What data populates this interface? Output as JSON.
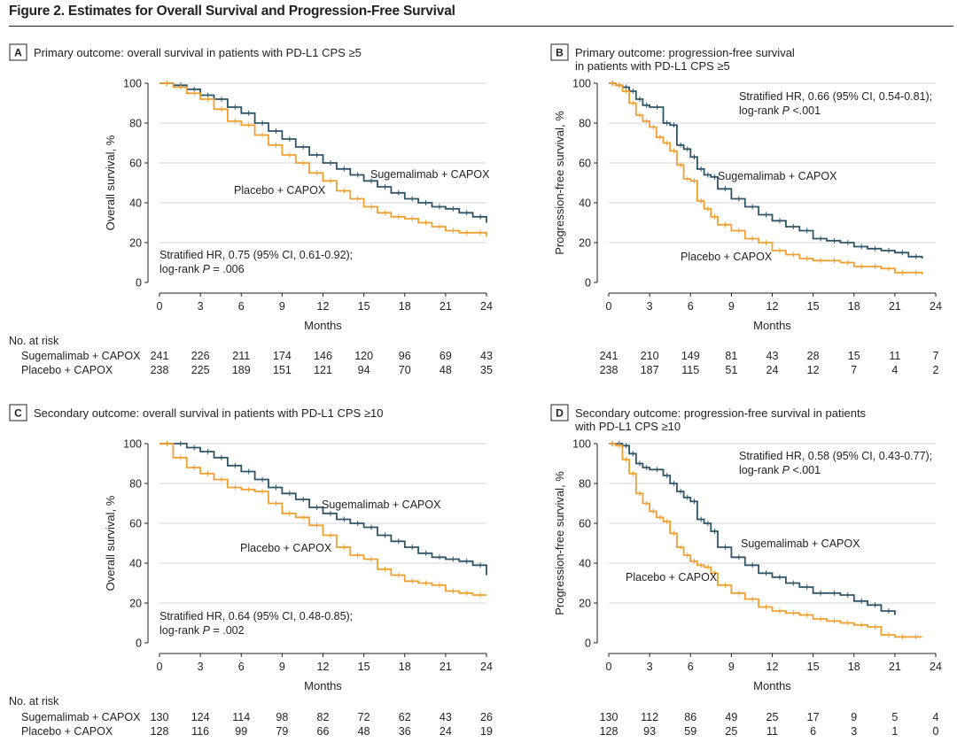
{
  "figure_title": "Figure 2. Estimates for Overall Survival and Progression-Free Survival",
  "colors": {
    "sugemalimab": "#2e5568",
    "placebo": "#f0a030",
    "text": "#231f20",
    "grid": "#c8c8c8"
  },
  "chart_data": [
    {
      "type": "line",
      "panel_label": "A",
      "title": [
        "Primary outcome: overall survival in patients with PD-L1 CPS ≥5"
      ],
      "xlabel": "Months",
      "ylabel": "Overall survival, %",
      "xlim": [
        0,
        24
      ],
      "ylim": [
        0,
        100
      ],
      "xticks": [
        0,
        3,
        6,
        9,
        12,
        15,
        18,
        21,
        24
      ],
      "yticks": [
        0,
        20,
        40,
        60,
        80,
        100
      ],
      "grid": "horizontal",
      "annotation": [
        [
          "Stratified HR, 0.75 (95% CI, 0.61-0.92);"
        ],
        [
          "log-rank ",
          {
            "i": "P"
          },
          " = .006"
        ]
      ],
      "series": [
        {
          "name": "Sugemalimab + CAPOX",
          "x": [
            0,
            1,
            2,
            3,
            4,
            5,
            6,
            7,
            8,
            9,
            10,
            11,
            12,
            13,
            14,
            15,
            16,
            17,
            18,
            19,
            20,
            21,
            22,
            23,
            24
          ],
          "y": [
            100,
            99,
            97,
            94,
            92,
            88,
            85,
            80,
            76,
            72,
            68,
            64,
            60,
            57,
            54,
            51,
            48,
            45,
            42,
            40,
            38,
            37,
            35,
            33,
            30
          ]
        },
        {
          "name": "Placebo + CAPOX",
          "x": [
            0,
            1,
            2,
            3,
            4,
            5,
            6,
            7,
            8,
            9,
            10,
            11,
            12,
            13,
            14,
            15,
            16,
            17,
            18,
            19,
            20,
            21,
            22,
            23,
            24
          ],
          "y": [
            100,
            98,
            95,
            92,
            87,
            81,
            79,
            74,
            69,
            64,
            60,
            55,
            51,
            46,
            42,
            38,
            35,
            33,
            32,
            30,
            28,
            26,
            25,
            25,
            23
          ]
        }
      ],
      "risk_table": {
        "header": "No. at risk",
        "rows": [
          {
            "label": "Sugemalimab + CAPOX",
            "values": [
              241,
              226,
              211,
              174,
              146,
              120,
              96,
              69,
              43
            ]
          },
          {
            "label": "Placebo + CAPOX",
            "values": [
              238,
              225,
              189,
              151,
              121,
              94,
              70,
              48,
              35
            ]
          }
        ]
      }
    },
    {
      "type": "line",
      "panel_label": "B",
      "title": [
        "Primary outcome: progression-free survival",
        "in patients with PD-L1 CPS ≥5"
      ],
      "xlabel": "Months",
      "ylabel": "Progression-free survival, %",
      "xlim": [
        0,
        24
      ],
      "ylim": [
        0,
        100
      ],
      "xticks": [
        0,
        3,
        6,
        9,
        12,
        15,
        18,
        21,
        24
      ],
      "yticks": [
        0,
        20,
        40,
        60,
        80,
        100
      ],
      "grid": "horizontal",
      "annotation": [
        [
          "Stratified HR, 0.66 (95% CI, 0.54-0.81);"
        ],
        [
          "log-rank ",
          {
            "i": "P"
          },
          " <.001"
        ]
      ],
      "series": [
        {
          "name": "Sugemalimab + CAPOX",
          "x": [
            0,
            0.5,
            1,
            1.5,
            2,
            2.5,
            3,
            4,
            4.5,
            5,
            5.5,
            6,
            6.5,
            7,
            7.5,
            8,
            9,
            10,
            11,
            12,
            13,
            14,
            15,
            16,
            17,
            18,
            19,
            20,
            21,
            22,
            23
          ],
          "y": [
            100,
            99,
            98,
            96,
            92,
            89,
            88,
            80,
            79,
            69,
            67,
            63,
            57,
            54,
            53,
            47,
            42,
            38,
            34,
            31,
            28,
            26,
            22,
            21,
            20,
            18,
            17,
            16,
            15,
            13,
            12
          ]
        },
        {
          "name": "Placebo + CAPOX",
          "x": [
            0,
            0.5,
            1,
            1.5,
            2,
            2.5,
            3,
            3.5,
            4,
            4.5,
            5,
            5.5,
            6,
            6.5,
            7,
            7.5,
            8,
            9,
            10,
            11,
            12,
            13,
            14,
            15,
            16,
            17,
            18,
            19,
            20,
            21,
            22,
            23
          ],
          "y": [
            100,
            99,
            96,
            90,
            84,
            81,
            78,
            73,
            70,
            66,
            59,
            52,
            51,
            41,
            37,
            33,
            29,
            26,
            22,
            20,
            16,
            14,
            12,
            11,
            11,
            10,
            8,
            8,
            7,
            5,
            5,
            4
          ]
        }
      ],
      "risk_table": {
        "rows": [
          {
            "label": "Sugemalimab + CAPOX",
            "values": [
              241,
              210,
              149,
              81,
              43,
              28,
              15,
              11,
              7
            ]
          },
          {
            "label": "Placebo + CAPOX",
            "values": [
              238,
              187,
              115,
              51,
              24,
              12,
              7,
              4,
              2
            ]
          }
        ]
      }
    },
    {
      "type": "line",
      "panel_label": "C",
      "title": [
        "Secondary outcome: overall survival in patients with PD-L1 CPS ≥10"
      ],
      "xlabel": "Months",
      "ylabel": "Overall survival, %",
      "xlim": [
        0,
        24
      ],
      "ylim": [
        0,
        100
      ],
      "xticks": [
        0,
        3,
        6,
        9,
        12,
        15,
        18,
        21,
        24
      ],
      "yticks": [
        0,
        20,
        40,
        60,
        80,
        100
      ],
      "grid": "horizontal",
      "annotation": [
        [
          "Stratified HR, 0.64 (95% CI, 0.48-0.85);"
        ],
        [
          "log-rank ",
          {
            "i": "P"
          },
          " = .002"
        ]
      ],
      "series": [
        {
          "name": "Sugemalimab + CAPOX",
          "x": [
            0,
            1,
            2,
            3,
            4,
            5,
            6,
            7,
            8,
            9,
            10,
            11,
            12,
            13,
            14,
            15,
            16,
            17,
            18,
            19,
            20,
            21,
            22,
            23,
            24
          ],
          "y": [
            100,
            100,
            98,
            96,
            93,
            89,
            86,
            82,
            78,
            75,
            72,
            68,
            65,
            62,
            60,
            58,
            54,
            51,
            48,
            45,
            43,
            42,
            41,
            39,
            34
          ]
        },
        {
          "name": "Placebo + CAPOX",
          "x": [
            0,
            1,
            2,
            3,
            4,
            5,
            6,
            7,
            8,
            9,
            10,
            11,
            12,
            13,
            14,
            15,
            16,
            17,
            18,
            19,
            20,
            21,
            22,
            23,
            24
          ],
          "y": [
            100,
            93,
            88,
            85,
            82,
            78,
            77,
            76,
            70,
            65,
            63,
            59,
            54,
            48,
            44,
            42,
            37,
            34,
            31,
            30,
            29,
            26,
            25,
            24,
            24
          ]
        }
      ],
      "risk_table": {
        "header": "No. at risk",
        "rows": [
          {
            "label": "Sugemalimab + CAPOX",
            "values": [
              130,
              124,
              114,
              98,
              82,
              72,
              62,
              43,
              26
            ]
          },
          {
            "label": "Placebo + CAPOX",
            "values": [
              128,
              116,
              99,
              79,
              66,
              48,
              36,
              24,
              19
            ]
          }
        ]
      }
    },
    {
      "type": "line",
      "panel_label": "D",
      "title": [
        "Secondary outcome: progression-free survival in patients",
        "with PD-L1 CPS ≥10"
      ],
      "xlabel": "Months",
      "ylabel": "Progression-free survival, %",
      "xlim": [
        0,
        24
      ],
      "ylim": [
        0,
        100
      ],
      "xticks": [
        0,
        3,
        6,
        9,
        12,
        15,
        18,
        21,
        24
      ],
      "yticks": [
        0,
        20,
        40,
        60,
        80,
        100
      ],
      "grid": "horizontal",
      "annotation": [
        [
          "Stratified HR, 0.58 (95% CI, 0.43-0.77);"
        ],
        [
          "log-rank ",
          {
            "i": "P"
          },
          " <.001"
        ]
      ],
      "series": [
        {
          "name": "Sugemalimab + CAPOX",
          "x": [
            0,
            0.5,
            1,
            1.5,
            2,
            2.5,
            3,
            4,
            4.5,
            5,
            5.5,
            6,
            6.5,
            7,
            7.5,
            8,
            9,
            10,
            11,
            12,
            13,
            14,
            15,
            16,
            17,
            18,
            19,
            20,
            21
          ],
          "y": [
            100,
            100,
            99,
            95,
            90,
            88,
            87,
            84,
            80,
            76,
            73,
            71,
            62,
            60,
            56,
            48,
            43,
            39,
            35,
            33,
            30,
            28,
            25,
            25,
            24,
            21,
            19,
            16,
            14
          ]
        },
        {
          "name": "Placebo + CAPOX",
          "x": [
            0,
            0.5,
            1,
            1.5,
            2,
            2.5,
            3,
            3.5,
            4,
            4.5,
            5,
            5.5,
            6,
            6.5,
            7,
            7.5,
            8,
            9,
            10,
            11,
            12,
            13,
            14,
            15,
            16,
            17,
            18,
            19,
            20,
            21,
            22,
            23
          ],
          "y": [
            100,
            99,
            92,
            85,
            75,
            70,
            66,
            63,
            61,
            55,
            48,
            44,
            41,
            39,
            38,
            35,
            29,
            25,
            22,
            18,
            16,
            15,
            14,
            12,
            11,
            10,
            9,
            8,
            4,
            3,
            3,
            3
          ]
        }
      ],
      "risk_table": {
        "rows": [
          {
            "label": "Sugemalimab + CAPOX",
            "values": [
              130,
              112,
              86,
              49,
              25,
              17,
              9,
              5,
              4
            ]
          },
          {
            "label": "Placebo + CAPOX",
            "values": [
              128,
              93,
              59,
              25,
              11,
              6,
              3,
              1,
              0
            ]
          }
        ]
      }
    }
  ]
}
